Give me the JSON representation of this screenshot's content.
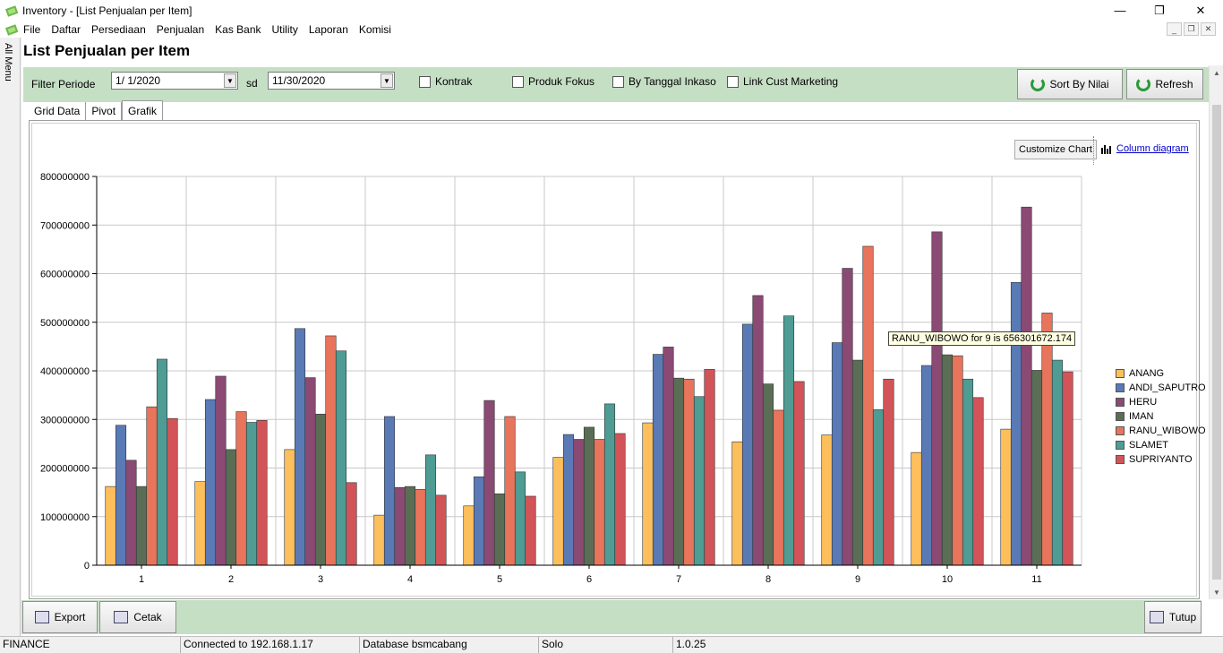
{
  "window": {
    "title": "Inventory - [List Penjualan per Item]",
    "minimize_glyph": "—",
    "restore_glyph": "❐",
    "close_glyph": "✕"
  },
  "menu": [
    "File",
    "Daftar",
    "Persediaan",
    "Penjualan",
    "Kas Bank",
    "Utility",
    "Laporan",
    "Komisi"
  ],
  "sidebar": {
    "label": "All Menu"
  },
  "page": {
    "title": "List Penjualan per Item"
  },
  "filter": {
    "label": "Filter Periode",
    "date_from": "1/ 1/2020",
    "sd_label": "sd",
    "date_to": "11/30/2020",
    "checkboxes": [
      {
        "label": "Kontrak",
        "checked": false
      },
      {
        "label": "Produk Fokus",
        "checked": false
      },
      {
        "label": "By Tanggal Inkaso",
        "checked": false
      },
      {
        "label": "Link Cust Marketing",
        "checked": false
      }
    ],
    "sort_button": "Sort By Nilai",
    "refresh_button": "Refresh"
  },
  "tabs": [
    {
      "label": "Grid Data",
      "active": false
    },
    {
      "label": "Pivot",
      "active": false
    },
    {
      "label": "Grafik",
      "active": true
    }
  ],
  "chart_panel": {
    "customize_button": "Customize Chart",
    "diagram_link": "Column diagram",
    "tooltip": "RANU_WIBOWO for 9 is 656301672.174"
  },
  "chart_data": {
    "type": "bar",
    "categories": [
      "1",
      "2",
      "3",
      "4",
      "5",
      "6",
      "7",
      "8",
      "9",
      "10",
      "11"
    ],
    "ylim": [
      0,
      800000000
    ],
    "yticks": [
      "0",
      "100000000",
      "200000000",
      "300000000",
      "400000000",
      "500000000",
      "600000000",
      "700000000",
      "800000000"
    ],
    "grid": true,
    "legend_position": "right",
    "series": [
      {
        "name": "ANANG",
        "color": "#fdbf5c",
        "values": [
          162000000,
          172000000,
          238000000,
          103000000,
          122000000,
          222000000,
          293000000,
          254000000,
          268000000,
          232000000,
          280000000
        ]
      },
      {
        "name": "ANDI_SAPUTRO",
        "color": "#5a7ab6",
        "values": [
          288000000,
          341000000,
          487000000,
          306000000,
          182000000,
          269000000,
          434000000,
          496000000,
          458000000,
          411000000,
          582000000
        ]
      },
      {
        "name": "HERU",
        "color": "#8a4a74",
        "values": [
          216000000,
          389000000,
          386000000,
          160000000,
          339000000,
          259000000,
          449000000,
          555000000,
          611000000,
          686000000,
          737000000
        ]
      },
      {
        "name": "IMAN",
        "color": "#5a6e56",
        "values": [
          162000000,
          238000000,
          311000000,
          162000000,
          147000000,
          284000000,
          385000000,
          373000000,
          422000000,
          433000000,
          401000000
        ]
      },
      {
        "name": "RANU_WIBOWO",
        "color": "#e8745c",
        "values": [
          326000000,
          316000000,
          472000000,
          156000000,
          306000000,
          259000000,
          383000000,
          319000000,
          656301672,
          431000000,
          519000000
        ]
      },
      {
        "name": "SLAMET",
        "color": "#4e9c94",
        "values": [
          424000000,
          294000000,
          441000000,
          227000000,
          192000000,
          332000000,
          347000000,
          513000000,
          320000000,
          383000000,
          422000000
        ]
      },
      {
        "name": "SUPRIYANTO",
        "color": "#d25458",
        "values": [
          302000000,
          298000000,
          170000000,
          144000000,
          142000000,
          271000000,
          403000000,
          378000000,
          383000000,
          345000000,
          398000000
        ]
      }
    ]
  },
  "bottom": {
    "export_button": "Export",
    "print_button": "Cetak",
    "close_button": "Tutup"
  },
  "status": [
    "FINANCE",
    "Connected  to 192.168.1.17",
    "Database  bsmcabang",
    "Solo",
    "1.0.25"
  ]
}
